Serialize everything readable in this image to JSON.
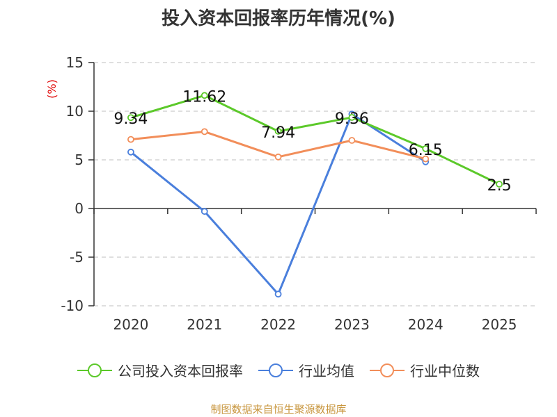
{
  "title": "投入资本回报率历年情况(%)",
  "source": "制图数据来自恒生聚源数据库",
  "colors": {
    "company": "#5cc92a",
    "industry_avg": "#4a7fdc",
    "industry_median": "#f28e5a",
    "axis": "#333333",
    "grid": "#cccccc",
    "unit_label": "#e00000"
  },
  "chart_data": {
    "type": "line",
    "title": "投入资本回报率历年情况(%)",
    "ylabel": "(%)",
    "xlabel": "",
    "categories": [
      "2020",
      "2021",
      "2022",
      "2023",
      "2024",
      "2025"
    ],
    "ylim": [
      -10,
      15
    ],
    "yticks": [
      15,
      10,
      5,
      0,
      -5,
      -10
    ],
    "grid": true,
    "legend_position": "bottom",
    "series": [
      {
        "name": "公司投入资本回报率",
        "color_key": "company",
        "values": [
          9.34,
          11.62,
          7.94,
          9.36,
          6.15,
          2.5
        ],
        "labels": [
          "9.34",
          "11.62",
          "7.94",
          "9.36",
          "6.15",
          "2.5"
        ]
      },
      {
        "name": "行业均值",
        "color_key": "industry_avg",
        "values": [
          5.8,
          -0.3,
          -8.8,
          9.7,
          4.8,
          null
        ]
      },
      {
        "name": "行业中位数",
        "color_key": "industry_median",
        "values": [
          7.1,
          7.9,
          5.3,
          7.0,
          5.1,
          null
        ]
      }
    ]
  }
}
